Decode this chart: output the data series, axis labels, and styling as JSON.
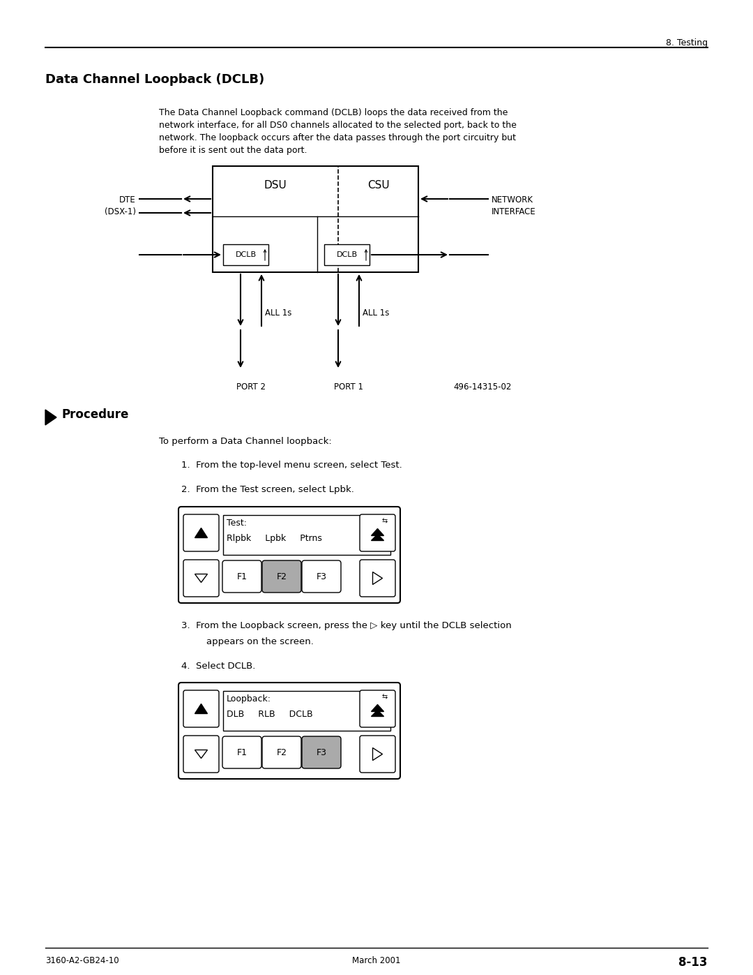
{
  "page_header_right": "8. Testing",
  "section_title": "Data Channel Loopback (DCLB)",
  "body_text_lines": [
    "The Data Channel Loopback command (DCLB) loops the data received from the",
    "network interface, for all DS0 channels allocated to the selected port, back to the",
    "network. The loopback occurs after the data passes through the port circuitry but",
    "before it is sent out the data port."
  ],
  "diagram_label_dsu": "DSU",
  "diagram_label_csu": "CSU",
  "diagram_label_dte": "DTE\n(DSX-1)",
  "diagram_label_network": "NETWORK\nINTERFACE",
  "diagram_label_dclb1": "DCLB",
  "diagram_label_dclb2": "DCLB",
  "diagram_label_all1s_left": "ALL 1s",
  "diagram_label_all1s_right": "ALL 1s",
  "diagram_label_port2": "PORT 2",
  "diagram_label_port1": "PORT 1",
  "diagram_figure_number": "496-14315-02",
  "procedure_header": "Procedure",
  "procedure_intro": "To perform a Data Channel loopback:",
  "step1": "From the top-level menu screen, select Test.",
  "step2": "From the Test screen, select Lpbk.",
  "panel1_label": "Test:",
  "panel1_items": [
    "Rlpbk",
    "Lpbk",
    "Ptrns"
  ],
  "panel1_active_f": 2,
  "step3_part1": "From the Loopback screen, press the",
  "step3_sym": "▷",
  "step3_part2": "key until the DCLB selection",
  "step3_line2": "appears on the screen.",
  "step4": "Select DCLB.",
  "panel2_label": "Loopback:",
  "panel2_items": [
    "DLB",
    "RLB",
    "DCLB"
  ],
  "panel2_active_f": 3,
  "footer_left": "3160-A2-GB24-10",
  "footer_center": "March 2001",
  "footer_right": "8-13",
  "bg_color": "#ffffff",
  "text_color": "#000000",
  "active_btn_color": "#aaaaaa"
}
